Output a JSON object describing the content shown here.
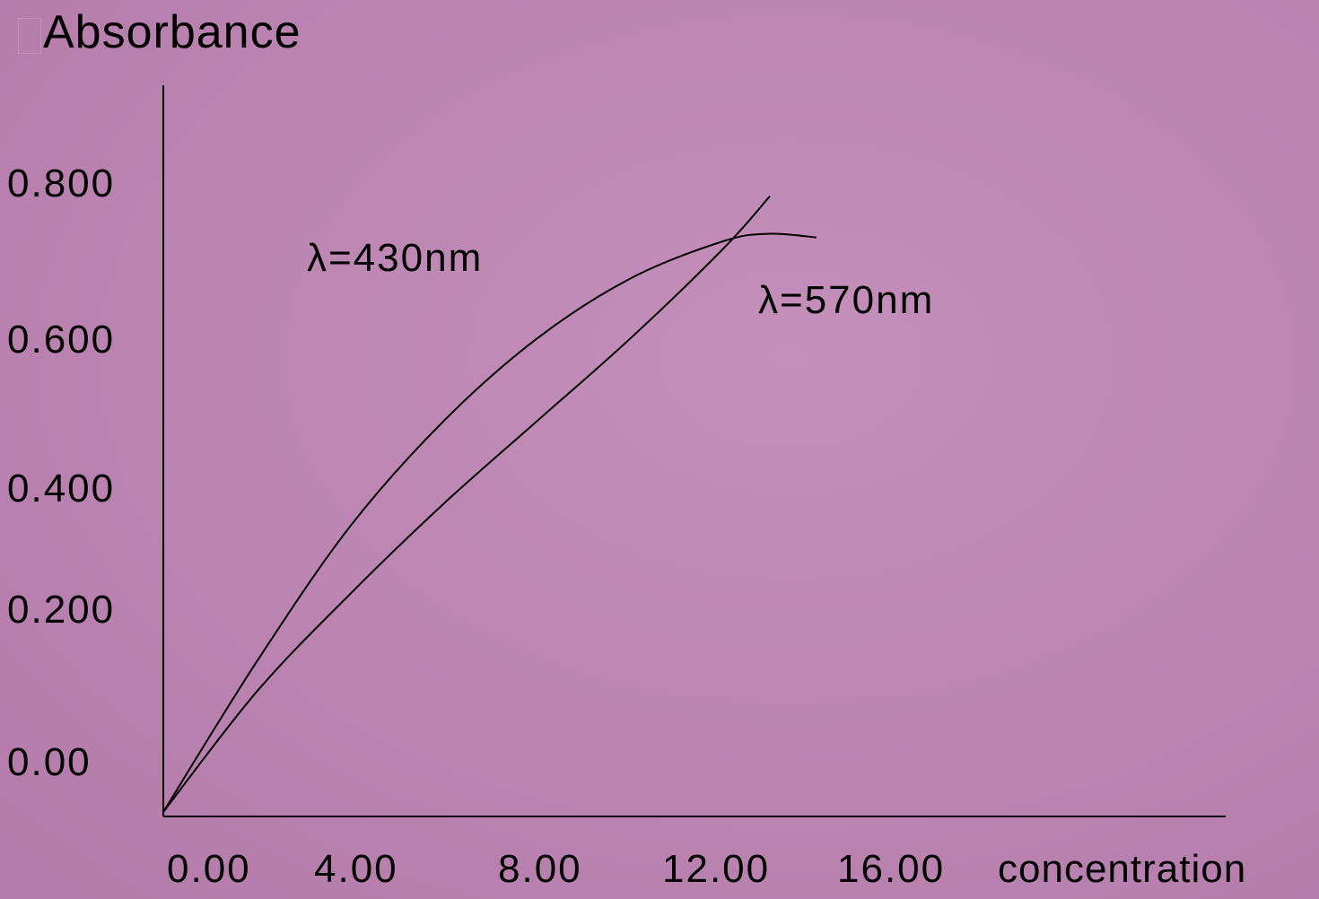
{
  "chart_data": {
    "type": "line",
    "ylabel": "Absorbance",
    "xlabel": "concentration",
    "x_ticks": [
      "0.00",
      "4.00",
      "8.00",
      "12.00",
      "16.00"
    ],
    "y_ticks": [
      "0.00",
      "0.200",
      "0.400",
      "0.600",
      "0.800"
    ],
    "xlim": [
      0,
      16
    ],
    "ylim": [
      0,
      0.8
    ],
    "grid": false,
    "series": [
      {
        "name": "λ=430nm",
        "x": [
          0,
          2,
          4,
          6,
          8,
          10,
          12,
          13,
          14
        ],
        "y": [
          0,
          0.2,
          0.38,
          0.52,
          0.63,
          0.71,
          0.76,
          0.77,
          0.765
        ]
      },
      {
        "name": "λ=570nm",
        "x": [
          0,
          2,
          4,
          6,
          8,
          10,
          12,
          13
        ],
        "y": [
          0,
          0.16,
          0.29,
          0.41,
          0.52,
          0.63,
          0.75,
          0.82
        ]
      }
    ]
  }
}
